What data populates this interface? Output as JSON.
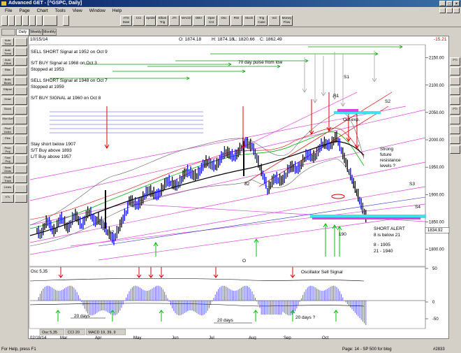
{
  "window": {
    "title": "Advanced GET - [^GSPC, Daily]"
  },
  "menu": [
    "File",
    "Page",
    "Chart",
    "Tools",
    "View",
    "Window",
    "Help"
  ],
  "toolbar": [
    "",
    "",
    "",
    "",
    "",
    "",
    "",
    "",
    "ATS Date",
    "CCI",
    "Sprdes",
    "Elliott Trig",
    "JTI",
    "MACD",
    "OBV",
    "Oper Cnt",
    "Osc",
    "RSI",
    "Stock",
    "Trig Case",
    "Vol",
    "Money Flow"
  ],
  "tabs": {
    "daily": "Daily",
    "weekly": "Weekly",
    "monthly": "Monthly"
  },
  "left_tools": [
    "Auto Trend",
    "Auto Trend",
    "Auto Elliott",
    "Bias",
    "Bulls Bears",
    "Ellipse",
    "Draw",
    "Stoch",
    "Mov Ave",
    "Pivot Index",
    "Fibs",
    "Price Proj",
    "Time Proj",
    "Seas Grids",
    "Profit Track",
    "Lines",
    "XTL"
  ],
  "right_tools": [
    "PTI",
    "",
    "",
    "",
    "",
    "PTI",
    "",
    "",
    "",
    ""
  ],
  "header": {
    "date": "10/15/14",
    "open": "O: 1874.18",
    "high": "H: 1874.18",
    "low": "L: 1820.66",
    "close": "C: 1862.49",
    "change": "-15.21"
  },
  "annotations": {
    "sell_1952": "SELL SHORT Signal at 1952 on Oct 9",
    "st_buy_1968": "S/T BUY Signal at 1968 on Oct 3",
    "stopped_1953": "Stopped at 1953",
    "sell_1948": "SELL SHORT Signal at 1948 on Oct 7",
    "stopped_1959": "Stopped at 1959",
    "st_buy_1960": "S/T BUY SIGNAL at 1960 on Oct 8",
    "pulse": "70 day pulse from low",
    "stay_short": "Stay short below 1907",
    "st_buy_above": "S/T Buy above 1893",
    "lt_buy_above": "L/T Buy above 1957",
    "oct_exp": "Oct exp.",
    "strong_future_1": "Strong",
    "strong_future_2": "future",
    "strong_future_3": "resistance",
    "strong_future_4": "levels ?",
    "short_alert": "SHORT ALERT",
    "eight_below": "8 is below 21",
    "eight_val": "8    - 1905",
    "twentyone_val": "21  - 1940",
    "s1": "S1",
    "s2": "S2",
    "s3": "S3",
    "s4": "S4",
    "r1": "R1",
    "low82a": "82",
    "low82b": "82",
    "v190": "190",
    "marker_o": "O",
    "osc_sell": "Oscillator Sell Signal",
    "days_1": "20 days",
    "days_2": "20 days",
    "days_3": "20 days ?",
    "osc_label": "Osc 5,35",
    "price_label": "1834.92"
  },
  "chart_data": {
    "type": "candlestick",
    "y_ticks": [
      "2150.00",
      "2100.00",
      "2050.00",
      "2000.00",
      "1950.00",
      "1900.00",
      "1850.00",
      "1800.00"
    ],
    "ylim": [
      1770,
      2170
    ],
    "osc_ticks": [
      "50",
      "0",
      "-50"
    ],
    "x_ticks": [
      "02/18/14",
      "Mar",
      "Apr",
      "May",
      "Jun",
      "Jul",
      "Aug",
      "Sep",
      "Oct"
    ],
    "indicator_tabs": [
      "Osc 5,35",
      "CCI 20",
      "MACD 19, 39, 9"
    ],
    "last_price": 1834.92
  },
  "status": {
    "help": "For Help, press F1",
    "page": "Page: 14 - SP 500 for blog",
    "id": "#2833"
  }
}
